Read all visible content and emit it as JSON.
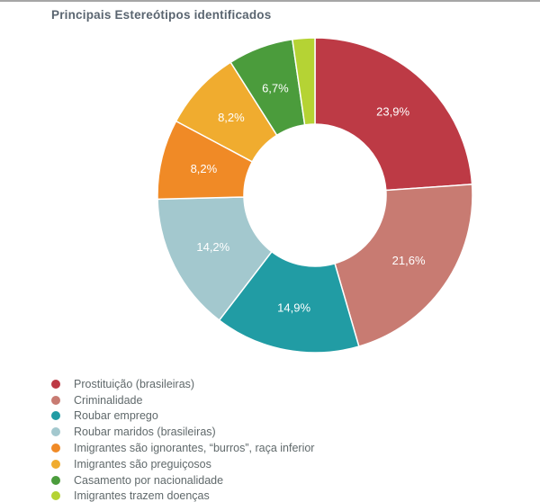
{
  "chart_data": {
    "type": "pie",
    "subtype": "donut",
    "title": "Principais Estereótipos identificados",
    "legend_position": "bottom-left",
    "start_angle_deg": 0,
    "direction": "clockwise",
    "inner_radius_ratio": 0.45,
    "label_color": "#ffffff",
    "slices": [
      {
        "label": "Prostituição (brasileiras)",
        "value": 23.9,
        "display": "23,9%",
        "color": "#bd3a45"
      },
      {
        "label": "Criminalidade",
        "value": 21.6,
        "display": "21,6%",
        "color": "#c87b72"
      },
      {
        "label": "Roubar emprego",
        "value": 14.9,
        "display": "14,9%",
        "color": "#219ca4"
      },
      {
        "label": "Roubar maridos (brasileiras)",
        "value": 14.2,
        "display": "14,2%",
        "color": "#a3c8ce"
      },
      {
        "label": "Imigrantes são ignorantes, “burros”, raça inferior",
        "value": 8.2,
        "display": "8,2%",
        "color": "#f08a26"
      },
      {
        "label": "Imigrantes são preguiçosos",
        "value": 8.2,
        "display": "8,2%",
        "color": "#f0ac2f"
      },
      {
        "label": "Casamento por nacionalidade",
        "value": 6.7,
        "display": "6,7%",
        "color": "#4b9c3c"
      },
      {
        "label": "Imigrantes trazem doenças",
        "value": 2.3,
        "display": "",
        "color": "#b5d334"
      }
    ]
  }
}
